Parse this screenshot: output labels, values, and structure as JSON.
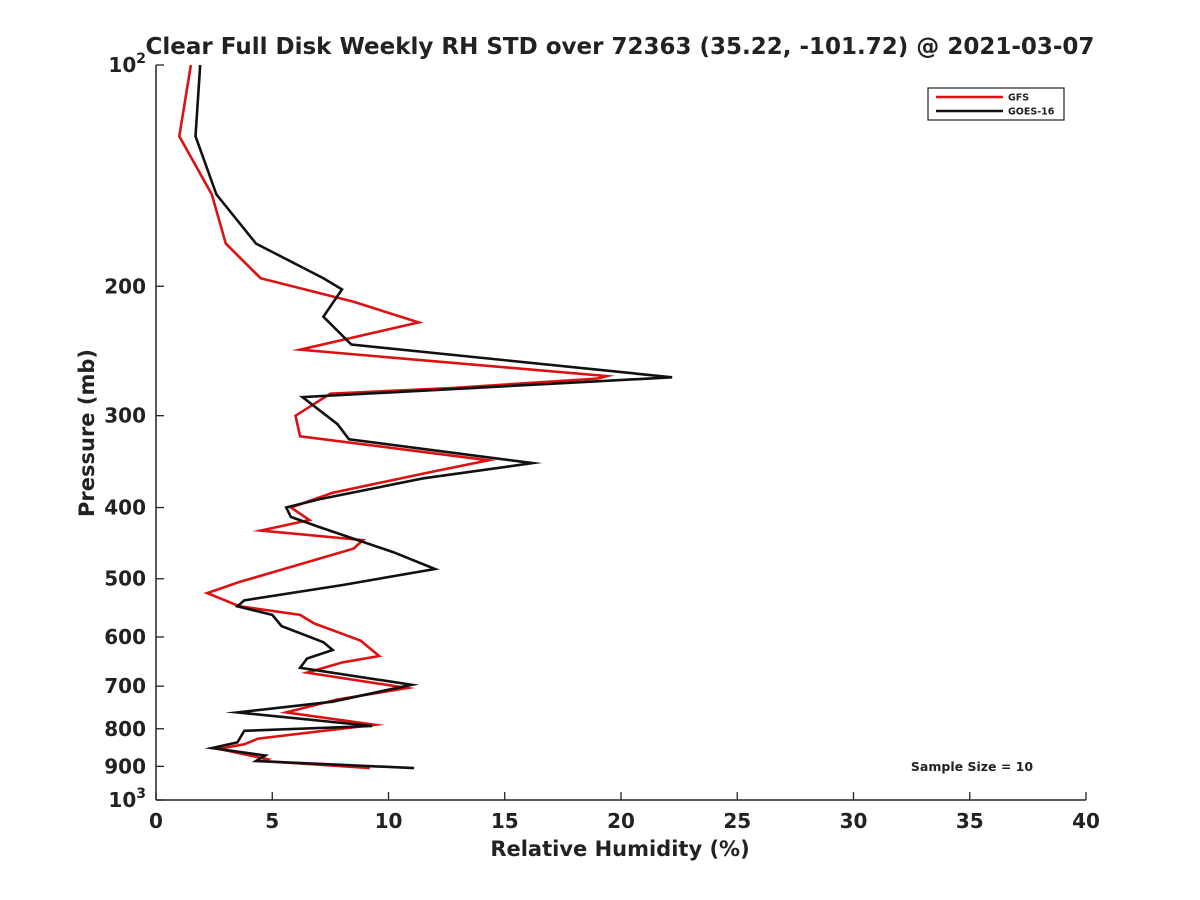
{
  "chart_data": {
    "type": "line",
    "title": "Clear Full Disk Weekly RH STD over 72363 (35.22, -101.72) @ 2021-03-07",
    "xlabel": "Relative Humidity (%)",
    "ylabel": "Pressure (mb)",
    "xlim": [
      0,
      40
    ],
    "ylim": [
      100,
      1000
    ],
    "yscale": "log",
    "y_reversed": true,
    "x_ticks": [
      0,
      5,
      10,
      15,
      20,
      25,
      30,
      35,
      40
    ],
    "x_tick_labels": [
      "0",
      "5",
      "10",
      "15",
      "20",
      "25",
      "30",
      "35",
      "40"
    ],
    "y_ticks": [
      {
        "value": 100,
        "base": "10",
        "exp": "2"
      },
      {
        "value": 200,
        "label": "200"
      },
      {
        "value": 300,
        "label": "300"
      },
      {
        "value": 400,
        "label": "400"
      },
      {
        "value": 500,
        "label": "500"
      },
      {
        "value": 600,
        "label": "600"
      },
      {
        "value": 700,
        "label": "700"
      },
      {
        "value": 800,
        "label": "800"
      },
      {
        "value": 900,
        "label": "900"
      },
      {
        "value": 1000,
        "base": "10",
        "exp": "3"
      }
    ],
    "legend_position": "top-right",
    "annotation": "Sample Size = 10",
    "series": [
      {
        "name": "GFS",
        "color": "#dd1111",
        "points": [
          [
            1.5,
            100
          ],
          [
            1.0,
            125
          ],
          [
            2.4,
            150
          ],
          [
            3.0,
            175
          ],
          [
            4.5,
            195
          ],
          [
            8.5,
            210
          ],
          [
            11.3,
            224
          ],
          [
            6.2,
            244
          ],
          [
            19.4,
            265
          ],
          [
            19.0,
            267
          ],
          [
            12.8,
            275
          ],
          [
            7.5,
            280
          ],
          [
            6.0,
            300
          ],
          [
            6.2,
            320
          ],
          [
            14.3,
            345
          ],
          [
            11.8,
            358
          ],
          [
            7.6,
            382
          ],
          [
            5.8,
            400
          ],
          [
            6.6,
            416
          ],
          [
            4.5,
            430
          ],
          [
            8.9,
            443
          ],
          [
            8.5,
            455
          ],
          [
            3.6,
            505
          ],
          [
            2.2,
            523
          ],
          [
            3.6,
            545
          ],
          [
            6.2,
            560
          ],
          [
            6.8,
            575
          ],
          [
            8.8,
            607
          ],
          [
            9.6,
            637
          ],
          [
            8.0,
            650
          ],
          [
            6.5,
            671
          ],
          [
            10.8,
            704
          ],
          [
            7.8,
            730
          ],
          [
            5.6,
            760
          ],
          [
            9.4,
            790
          ],
          [
            4.4,
            825
          ],
          [
            3.8,
            840
          ],
          [
            2.7,
            852
          ],
          [
            4.8,
            880
          ],
          [
            4.6,
            885
          ],
          [
            9.2,
            905
          ]
        ]
      },
      {
        "name": "GOES-16",
        "color": "#111111",
        "points": [
          [
            1.9,
            100
          ],
          [
            1.7,
            125
          ],
          [
            2.6,
            150
          ],
          [
            4.3,
            175
          ],
          [
            7.2,
            195
          ],
          [
            8.0,
            202
          ],
          [
            7.2,
            220
          ],
          [
            8.4,
            240
          ],
          [
            22.2,
            266
          ],
          [
            6.3,
            283
          ],
          [
            7.8,
            308
          ],
          [
            8.3,
            323
          ],
          [
            16.2,
            348
          ],
          [
            11.5,
            365
          ],
          [
            7.0,
            390
          ],
          [
            5.6,
            400
          ],
          [
            5.8,
            412
          ],
          [
            7.0,
            425
          ],
          [
            10.2,
            460
          ],
          [
            12.0,
            485
          ],
          [
            8.0,
            510
          ],
          [
            3.8,
            535
          ],
          [
            3.5,
            545
          ],
          [
            5.0,
            560
          ],
          [
            5.4,
            580
          ],
          [
            7.2,
            610
          ],
          [
            7.6,
            625
          ],
          [
            6.5,
            642
          ],
          [
            6.2,
            661
          ],
          [
            11.0,
            697
          ],
          [
            9.8,
            710
          ],
          [
            7.6,
            735
          ],
          [
            3.5,
            760
          ],
          [
            9.3,
            793
          ],
          [
            3.8,
            805
          ],
          [
            3.5,
            835
          ],
          [
            2.4,
            850
          ],
          [
            4.7,
            870
          ],
          [
            4.3,
            885
          ],
          [
            11.1,
            905
          ]
        ]
      }
    ]
  }
}
